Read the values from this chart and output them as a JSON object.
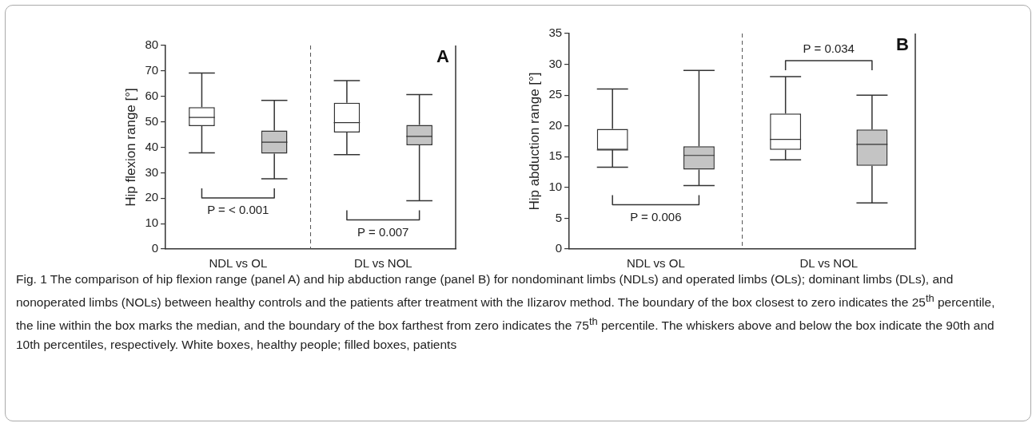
{
  "chart_data": [
    {
      "type": "box",
      "ylabel": "Hip flexion range [°]",
      "categories": [
        "NDL vs OL",
        "DL vs NOL"
      ],
      "ylim": [
        0,
        80
      ],
      "yticks": [
        0,
        10,
        20,
        30,
        40,
        50,
        60,
        70,
        80
      ],
      "grid": false,
      "series": [
        {
          "color": "#ffffff",
          "boxes": [
            {
              "low": 37.8,
              "q1": 48.3,
              "median": 51.7,
              "q3": 55.8,
              "high": 69.2
            },
            {
              "low": 37.1,
              "q1": 45.8,
              "median": 49.7,
              "q3": 57.5,
              "high": 66.2
            }
          ]
        },
        {
          "color": "#c4c4c4",
          "boxes": [
            {
              "low": 27.6,
              "q1": 37.5,
              "median": 42.0,
              "q3": 46.6,
              "high": 58.4
            },
            {
              "low": 19.0,
              "q1": 40.8,
              "median": 44.3,
              "q3": 48.8,
              "high": 60.7
            }
          ]
        }
      ],
      "annotations": [
        "A",
        "P = < 0.001",
        "P = 0.007"
      ]
    },
    {
      "type": "box",
      "ylabel": "Hip abduction range [°]",
      "categories": [
        "NDL vs OL",
        "DL vs NOL"
      ],
      "ylim": [
        0,
        35
      ],
      "yticks": [
        0,
        5,
        10,
        15,
        20,
        25,
        30,
        35
      ],
      "grid": false,
      "series": [
        {
          "color": "#ffffff",
          "boxes": [
            {
              "low": 13.3,
              "q1": 16.1,
              "median": 16.1,
              "q3": 19.5,
              "high": 26.0
            },
            {
              "low": 14.5,
              "q1": 16.1,
              "median": 17.8,
              "q3": 22.0,
              "high": 28.0
            }
          ]
        },
        {
          "color": "#c4c4c4",
          "boxes": [
            {
              "low": 10.3,
              "q1": 12.9,
              "median": 15.2,
              "q3": 16.7,
              "high": 29.0
            },
            {
              "low": 7.5,
              "q1": 13.5,
              "median": 17.0,
              "q3": 19.4,
              "high": 25.0
            }
          ]
        }
      ],
      "annotations": [
        "B",
        "P = 0.006",
        "P = 0.034"
      ]
    },
    {
      "type": "other",
      "annotations": [
        "Fig. 1 The comparison of hip flexion range (panel A) and hip abduction range (panel B) for nondominant limbs (NDLs) and operated limbs (OLs); dominant limbs (DLs), and nonoperated limbs (NOLs) between healthy controls and the patients after treatment with the Ilizarov method. The boundary of the box closest to zero indicates the 25$^{th}$ percentile, the line within the box marks the median, and the boundary of the box farthest from zero indicates the 75$^{th}$ percentile. The whiskers above and below the box indicate the 90th and 10th percentiles, respectively. White boxes, healthy people; filled boxes, patients"
      ]
    }
  ]
}
